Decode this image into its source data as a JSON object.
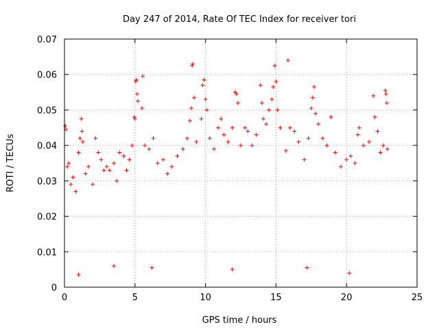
{
  "chart_data": {
    "type": "scatter",
    "title": "Day 247 of 2014, Rate Of TEC Index for receiver tori",
    "xlabel": "GPS time / hours",
    "ylabel": "ROTI / TECUs",
    "xlim": [
      0,
      25
    ],
    "ylim": [
      0,
      0.07
    ],
    "xticks": [
      0,
      5,
      10,
      15,
      20,
      25
    ],
    "yticks": [
      0,
      0.01,
      0.02,
      0.03,
      0.04,
      0.05,
      0.06,
      0.07
    ],
    "xtick_labels": [
      "0",
      "5",
      "10",
      "15",
      "20",
      "25"
    ],
    "ytick_labels": [
      "0",
      "0.01",
      "0.02",
      "0.03",
      "0.04",
      "0.05",
      "0.06",
      "0.07"
    ],
    "grid": true,
    "legend": "none",
    "marker": "plus",
    "color": "#ff0000",
    "series": [
      {
        "points": [
          [
            0.05,
            0.0455
          ],
          [
            0.1,
            0.0445
          ],
          [
            0.2,
            0.034
          ],
          [
            0.3,
            0.035
          ],
          [
            0.45,
            0.029
          ],
          [
            0.6,
            0.031
          ],
          [
            0.8,
            0.027
          ],
          [
            1.0,
            0.038
          ],
          [
            1.1,
            0.042
          ],
          [
            1.2,
            0.0475
          ],
          [
            1.25,
            0.044
          ],
          [
            1.3,
            0.041
          ],
          [
            1.5,
            0.032
          ],
          [
            1.7,
            0.034
          ],
          [
            2.0,
            0.029
          ],
          [
            2.2,
            0.042
          ],
          [
            2.4,
            0.038
          ],
          [
            2.6,
            0.036
          ],
          [
            2.8,
            0.033
          ],
          [
            3.0,
            0.034
          ],
          [
            3.2,
            0.033
          ],
          [
            3.5,
            0.035
          ],
          [
            3.7,
            0.03
          ],
          [
            3.9,
            0.038
          ],
          [
            4.2,
            0.037
          ],
          [
            4.4,
            0.033
          ],
          [
            4.6,
            0.036
          ],
          [
            4.8,
            0.04
          ],
          [
            4.95,
            0.048
          ],
          [
            5.0,
            0.0475
          ],
          [
            5.05,
            0.058
          ],
          [
            5.1,
            0.0585
          ],
          [
            5.15,
            0.0545
          ],
          [
            5.2,
            0.0525
          ],
          [
            5.5,
            0.0505
          ],
          [
            5.55,
            0.0595
          ],
          [
            5.7,
            0.04
          ],
          [
            6.0,
            0.039
          ],
          [
            6.3,
            0.042
          ],
          [
            6.6,
            0.035
          ],
          [
            7.0,
            0.036
          ],
          [
            7.3,
            0.032
          ],
          [
            7.6,
            0.034
          ],
          [
            8.0,
            0.037
          ],
          [
            8.4,
            0.039
          ],
          [
            8.7,
            0.042
          ],
          [
            8.9,
            0.047
          ],
          [
            9.0,
            0.0505
          ],
          [
            9.05,
            0.0625
          ],
          [
            9.1,
            0.063
          ],
          [
            9.2,
            0.0535
          ],
          [
            9.35,
            0.041
          ],
          [
            9.7,
            0.0475
          ],
          [
            9.8,
            0.057
          ],
          [
            9.9,
            0.0585
          ],
          [
            10.0,
            0.053
          ],
          [
            10.1,
            0.05
          ],
          [
            10.3,
            0.042
          ],
          [
            10.6,
            0.039
          ],
          [
            10.9,
            0.045
          ],
          [
            11.1,
            0.0475
          ],
          [
            11.3,
            0.043
          ],
          [
            11.6,
            0.041
          ],
          [
            11.9,
            0.045
          ],
          [
            12.1,
            0.055
          ],
          [
            12.2,
            0.0545
          ],
          [
            12.3,
            0.052
          ],
          [
            12.5,
            0.04
          ],
          [
            12.8,
            0.045
          ],
          [
            13.0,
            0.044
          ],
          [
            13.3,
            0.04
          ],
          [
            13.6,
            0.043
          ],
          [
            13.9,
            0.057
          ],
          [
            14.0,
            0.052
          ],
          [
            14.1,
            0.0475
          ],
          [
            14.3,
            0.046
          ],
          [
            14.5,
            0.05
          ],
          [
            14.7,
            0.053
          ],
          [
            14.8,
            0.0565
          ],
          [
            14.9,
            0.0625
          ],
          [
            15.0,
            0.058
          ],
          [
            15.1,
            0.05
          ],
          [
            15.3,
            0.045
          ],
          [
            15.7,
            0.0385
          ],
          [
            15.85,
            0.064
          ],
          [
            16.0,
            0.045
          ],
          [
            16.3,
            0.044
          ],
          [
            16.6,
            0.041
          ],
          [
            17.0,
            0.036
          ],
          [
            17.3,
            0.042
          ],
          [
            17.5,
            0.0505
          ],
          [
            17.6,
            0.0535
          ],
          [
            17.7,
            0.0565
          ],
          [
            17.8,
            0.049
          ],
          [
            18.0,
            0.046
          ],
          [
            18.3,
            0.042
          ],
          [
            18.6,
            0.04
          ],
          [
            18.9,
            0.048
          ],
          [
            19.2,
            0.038
          ],
          [
            19.6,
            0.034
          ],
          [
            20.0,
            0.036
          ],
          [
            20.3,
            0.037
          ],
          [
            20.6,
            0.035
          ],
          [
            20.8,
            0.043
          ],
          [
            20.9,
            0.045
          ],
          [
            21.2,
            0.04
          ],
          [
            21.6,
            0.041
          ],
          [
            21.9,
            0.054
          ],
          [
            22.0,
            0.048
          ],
          [
            22.2,
            0.044
          ],
          [
            22.4,
            0.038
          ],
          [
            22.6,
            0.04
          ],
          [
            22.75,
            0.0555
          ],
          [
            22.8,
            0.0545
          ],
          [
            22.85,
            0.052
          ],
          [
            22.9,
            0.039
          ],
          [
            1.0,
            0.0035
          ],
          [
            3.5,
            0.006
          ],
          [
            6.2,
            0.0055
          ],
          [
            11.9,
            0.005
          ],
          [
            17.2,
            0.0055
          ],
          [
            20.2,
            0.004
          ]
        ]
      }
    ]
  }
}
